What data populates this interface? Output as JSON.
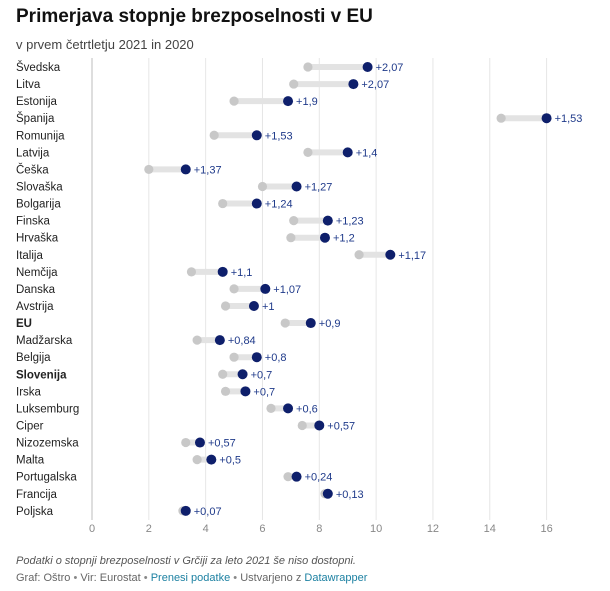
{
  "chart_data": {
    "type": "dot-range",
    "title": "Primerjava stopnje brezposelnosti v EU",
    "subtitle": "v prvem četrtletju 2021 in 2020",
    "xlim": [
      0,
      17
    ],
    "ticks": [
      0,
      2,
      4,
      6,
      8,
      10,
      12,
      14,
      16
    ],
    "grid": true,
    "colors": {
      "year_2020": "#c8c8c8",
      "year_2021": "#0e1f6b",
      "bar": "#e3e3e3",
      "label": "#1f3a8a"
    },
    "rows": [
      {
        "country": "Švedska",
        "v2020": 7.6,
        "v2021": 9.7,
        "label": "+2,07",
        "bold": false
      },
      {
        "country": "Litva",
        "v2020": 7.1,
        "v2021": 9.2,
        "label": "+2,07",
        "bold": false
      },
      {
        "country": "Estonija",
        "v2020": 5.0,
        "v2021": 6.9,
        "label": "+1,9",
        "bold": false
      },
      {
        "country": "Španija",
        "v2020": 14.4,
        "v2021": 16.0,
        "label": "+1,53",
        "bold": false
      },
      {
        "country": "Romunija",
        "v2020": 4.3,
        "v2021": 5.8,
        "label": "+1,53",
        "bold": false
      },
      {
        "country": "Latvija",
        "v2020": 7.6,
        "v2021": 9.0,
        "label": "+1,4",
        "bold": false
      },
      {
        "country": "Češka",
        "v2020": 2.0,
        "v2021": 3.3,
        "label": "+1,37",
        "bold": false
      },
      {
        "country": "Slovaška",
        "v2020": 6.0,
        "v2021": 7.2,
        "label": "+1,27",
        "bold": false
      },
      {
        "country": "Bolgarija",
        "v2020": 4.6,
        "v2021": 5.8,
        "label": "+1,24",
        "bold": false
      },
      {
        "country": "Finska",
        "v2020": 7.1,
        "v2021": 8.3,
        "label": "+1,23",
        "bold": false
      },
      {
        "country": "Hrvaška",
        "v2020": 7.0,
        "v2021": 8.2,
        "label": "+1,2",
        "bold": false
      },
      {
        "country": "Italija",
        "v2020": 9.4,
        "v2021": 10.5,
        "label": "+1,17",
        "bold": false
      },
      {
        "country": "Nemčija",
        "v2020": 3.5,
        "v2021": 4.6,
        "label": "+1,1",
        "bold": false
      },
      {
        "country": "Danska",
        "v2020": 5.0,
        "v2021": 6.1,
        "label": "+1,07",
        "bold": false
      },
      {
        "country": "Avstrija",
        "v2020": 4.7,
        "v2021": 5.7,
        "label": "+1",
        "bold": false
      },
      {
        "country": "EU",
        "v2020": 6.8,
        "v2021": 7.7,
        "label": "+0,9",
        "bold": true
      },
      {
        "country": "Madžarska",
        "v2020": 3.7,
        "v2021": 4.5,
        "label": "+0,84",
        "bold": false
      },
      {
        "country": "Belgija",
        "v2020": 5.0,
        "v2021": 5.8,
        "label": "+0,8",
        "bold": false
      },
      {
        "country": "Slovenija",
        "v2020": 4.6,
        "v2021": 5.3,
        "label": "+0,7",
        "bold": true
      },
      {
        "country": "Irska",
        "v2020": 4.7,
        "v2021": 5.4,
        "label": "+0,7",
        "bold": false
      },
      {
        "country": "Luksemburg",
        "v2020": 6.3,
        "v2021": 6.9,
        "label": "+0,6",
        "bold": false
      },
      {
        "country": "Ciper",
        "v2020": 7.4,
        "v2021": 8.0,
        "label": "+0,57",
        "bold": false
      },
      {
        "country": "Nizozemska",
        "v2020": 3.3,
        "v2021": 3.8,
        "label": "+0,57",
        "bold": false
      },
      {
        "country": "Malta",
        "v2020": 3.7,
        "v2021": 4.2,
        "label": "+0,5",
        "bold": false
      },
      {
        "country": "Portugalska",
        "v2020": 6.9,
        "v2021": 7.2,
        "label": "+0,24",
        "bold": false
      },
      {
        "country": "Francija",
        "v2020": 8.2,
        "v2021": 8.3,
        "label": "+0,13",
        "bold": false
      },
      {
        "country": "Poljska",
        "v2020": 3.2,
        "v2021": 3.3,
        "label": "+0,07",
        "bold": false
      }
    ]
  },
  "footnote": "Podatki o stopnji brezposelnosti v Grčiji za leto 2021 še niso dostopni.",
  "credits": {
    "graph": "Graf: Oštro",
    "source": "Vir: Eurostat",
    "download": "Prenesi podatke",
    "made_with": "Ustvarjeno z",
    "tool": "Datawrapper",
    "separator": "•"
  }
}
